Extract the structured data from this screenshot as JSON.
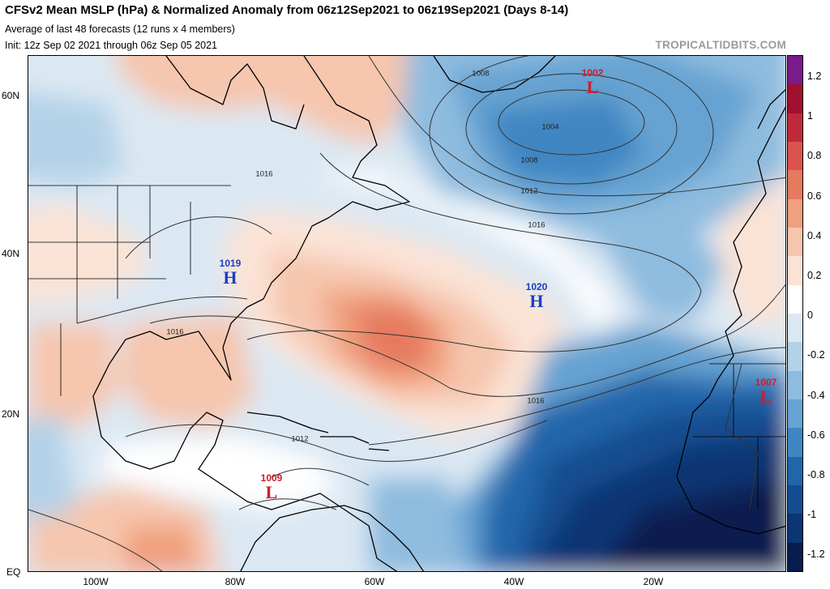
{
  "header": {
    "title": "CFSv2 Mean MSLP (hPa) & Normalized Anomaly from 06z12Sep2021 to 06z19Sep2021 (Days 8-14)",
    "subtitle1": "Average of last 48 forecasts (12 runs x 4 members)",
    "subtitle2": "Init: 12z Sep 02 2021 through 06z Sep 05 2021",
    "credit": "TROPICALTIDBITS.COM"
  },
  "axes": {
    "lat_labels": [
      "60N",
      "40N",
      "20N",
      "EQ"
    ],
    "lon_labels": [
      "100W",
      "80W",
      "60W",
      "40W",
      "20W"
    ]
  },
  "colorbar": {
    "ticks": [
      "1.2",
      "1",
      "0.8",
      "0.6",
      "0.4",
      "0.2",
      "0",
      "-0.2",
      "-0.4",
      "-0.6",
      "-0.8",
      "-1",
      "-1.2"
    ],
    "colors": [
      "#7b1a8a",
      "#a01030",
      "#c0293b",
      "#d9534f",
      "#e67a5e",
      "#f0a07f",
      "#f6c6ae",
      "#fbe3d6",
      "#ffffff",
      "#dbe8f3",
      "#b4d2e8",
      "#8ebcdf",
      "#66a3d2",
      "#3f86c2",
      "#2066aa",
      "#134d91",
      "#0c3573",
      "#081d4f"
    ]
  },
  "systems": [
    {
      "value": "1002",
      "letter": "L",
      "color": "#d01c2c"
    },
    {
      "value": "1019",
      "letter": "H",
      "color": "#1a3fc4"
    },
    {
      "value": "1020",
      "letter": "H",
      "color": "#1a3fc4"
    },
    {
      "value": "1007",
      "letter": "L",
      "color": "#d01c2c"
    },
    {
      "value": "1009",
      "letter": "L",
      "color": "#d01c2c"
    }
  ],
  "isobar_labels": [
    "1008",
    "1004",
    "1008",
    "1012",
    "1016",
    "1016",
    "1016",
    "1016",
    "1012"
  ]
}
